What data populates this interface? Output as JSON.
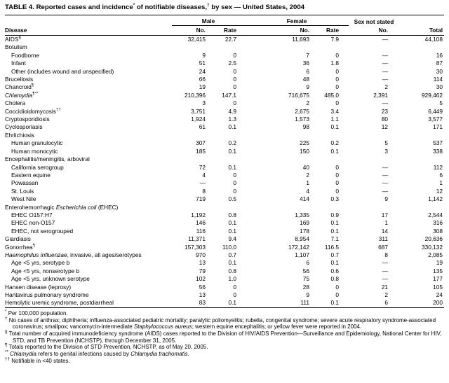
{
  "title_parts": [
    {
      "t": "TABLE 4. Reported cases and incidence"
    },
    {
      "t": "*",
      "sup": true
    },
    {
      "t": " of notifiable diseases,"
    },
    {
      "t": "†",
      "sup": true
    },
    {
      "t": " by sex — United States, 2004"
    }
  ],
  "table": {
    "group_headers": {
      "male": "Male",
      "female": "Female",
      "sex_not_stated": "Sex not stated"
    },
    "column_headers": {
      "disease": "Disease",
      "no": "No.",
      "rate": "Rate",
      "total": "Total"
    },
    "rows": [
      {
        "name": [
          {
            "t": "AIDS"
          },
          {
            "t": "§",
            "sup": true
          }
        ],
        "values": [
          "32,415",
          "22.7",
          "11,693",
          "7.9",
          "—",
          "44,108"
        ]
      },
      {
        "name": "Botulism",
        "group": true
      },
      {
        "name": "Foodborne",
        "indent": 1,
        "values": [
          "9",
          "0",
          "7",
          "0",
          "—",
          "16"
        ]
      },
      {
        "name": "Infant",
        "indent": 1,
        "values": [
          "51",
          "2.5",
          "36",
          "1.8",
          "—",
          "87"
        ]
      },
      {
        "name": "Other (includes wound and unspecified)",
        "indent": 1,
        "values": [
          "24",
          "0",
          "6",
          "0",
          "—",
          "30"
        ]
      },
      {
        "name": "Brucellosis",
        "values": [
          "66",
          "0",
          "48",
          "0",
          "—",
          "114"
        ]
      },
      {
        "name": [
          {
            "t": "Chancroid"
          },
          {
            "t": "¶",
            "sup": true
          }
        ],
        "values": [
          "19",
          "0",
          "9",
          "0",
          "2",
          "30"
        ]
      },
      {
        "name": [
          {
            "t": "Chlamydia",
            "i": true
          },
          {
            "t": "¶**",
            "sup": true
          }
        ],
        "values": [
          "210,396",
          "147.1",
          "716,675",
          "485.0",
          "2,391",
          "929,462"
        ]
      },
      {
        "name": "Cholera",
        "values": [
          "3",
          "0",
          "2",
          "0",
          "—",
          "5"
        ]
      },
      {
        "name": [
          {
            "t": "Coccidioidomycosis"
          },
          {
            "t": "††",
            "sup": true
          }
        ],
        "values": [
          "3,751",
          "4.9",
          "2,675",
          "3.4",
          "23",
          "6,449"
        ]
      },
      {
        "name": "Cryptosporidiosis",
        "values": [
          "1,924",
          "1.3",
          "1,573",
          "1.1",
          "80",
          "3,577"
        ]
      },
      {
        "name": "Cyclosporiasis",
        "values": [
          "61",
          "0.1",
          "98",
          "0.1",
          "12",
          "171"
        ]
      },
      {
        "name": "Ehrlichiosis",
        "group": true
      },
      {
        "name": "Human granulocytic",
        "indent": 1,
        "values": [
          "307",
          "0.2",
          "225",
          "0.2",
          "5",
          "537"
        ]
      },
      {
        "name": "Human monocytic",
        "indent": 1,
        "values": [
          "185",
          "0.1",
          "150",
          "0.1",
          "3",
          "338"
        ]
      },
      {
        "name": "Encephalitis/meningitis, arboviral",
        "group": true
      },
      {
        "name": "California serogroup",
        "indent": 1,
        "values": [
          "72",
          "0.1",
          "40",
          "0",
          "—",
          "112"
        ]
      },
      {
        "name": "Eastern equine",
        "indent": 1,
        "values": [
          "4",
          "0",
          "2",
          "0",
          "—",
          "6"
        ]
      },
      {
        "name": "Powassan",
        "indent": 1,
        "values": [
          "—",
          "0",
          "1",
          "0",
          "—",
          "1"
        ]
      },
      {
        "name": "St. Louis",
        "indent": 1,
        "values": [
          "8",
          "0",
          "4",
          "0",
          "—",
          "12"
        ]
      },
      {
        "name": "West Nile",
        "indent": 1,
        "values": [
          "719",
          "0.5",
          "414",
          "0.3",
          "9",
          "1,142"
        ]
      },
      {
        "name": [
          {
            "t": "Enterohemorrhagic "
          },
          {
            "t": "Escherichia coli",
            "i": true
          },
          {
            "t": " (EHEC)"
          }
        ],
        "group": true
      },
      {
        "name": "EHEC O157:H7",
        "indent": 1,
        "values": [
          "1,192",
          "0.8",
          "1,335",
          "0.9",
          "17",
          "2,544"
        ]
      },
      {
        "name": "EHEC non-O157",
        "indent": 1,
        "values": [
          "146",
          "0.1",
          "169",
          "0.1",
          "1",
          "316"
        ]
      },
      {
        "name": "EHEC, not serogrouped",
        "indent": 1,
        "values": [
          "116",
          "0.1",
          "178",
          "0.1",
          "14",
          "308"
        ]
      },
      {
        "name": "Giardiasis",
        "values": [
          "11,371",
          "9.4",
          "8,954",
          "7.1",
          "311",
          "20,636"
        ]
      },
      {
        "name": [
          {
            "t": "Gonorrhea"
          },
          {
            "t": "¶",
            "sup": true
          }
        ],
        "values": [
          "157,303",
          "110.0",
          "172,142",
          "116.5",
          "687",
          "330,132"
        ]
      },
      {
        "name": [
          {
            "t": "Haemophilus influenzae",
            "i": true
          },
          {
            "t": ", invasive, all ages/serotypes"
          }
        ],
        "values": [
          "970",
          "0.7",
          "1,107",
          "0.7",
          "8",
          "2,085"
        ]
      },
      {
        "name": "Age <5 yrs, serotype b",
        "indent": 1,
        "values": [
          "13",
          "0.1",
          "6",
          "0.1",
          "—",
          "19"
        ]
      },
      {
        "name": "Age <5 yrs, nonserotype b",
        "indent": 1,
        "values": [
          "79",
          "0.8",
          "56",
          "0.6",
          "—",
          "135"
        ]
      },
      {
        "name": "Age <5 yrs, unknown serotype",
        "indent": 1,
        "values": [
          "102",
          "1.0",
          "75",
          "0.8",
          "—",
          "177"
        ]
      },
      {
        "name": "Hansen disease (leprosy)",
        "values": [
          "56",
          "0",
          "28",
          "0",
          "21",
          "105"
        ]
      },
      {
        "name": "Hantavirus pulmonary syndrome",
        "values": [
          "13",
          "0",
          "9",
          "0",
          "2",
          "24"
        ]
      },
      {
        "name": "Hemolytic uremic syndrome, postdiarrheal",
        "values": [
          "83",
          "0.1",
          "111",
          "0.1",
          "6",
          "200"
        ]
      }
    ]
  },
  "footnotes": [
    {
      "marker": "*",
      "parts": "Per 100,000 population."
    },
    {
      "marker": "†",
      "parts": [
        {
          "t": "No cases of anthrax; diphtheria; influenza-associated pediatric mortality; paralytic poliomyelitis; rubella, congenital syndrome; severe acute respiratory syndrome-associated coronavirus; smallpox; vancomycin-intermediate "
        },
        {
          "t": "Staphylococcus aureus",
          "i": true
        },
        {
          "t": "; western equine encephalitis; or yellow fever were reported in 2004."
        }
      ]
    },
    {
      "marker": "§",
      "parts": "Total number of acquired immunodeficiency syndrome (AIDS) cases reported to the Division of HIV/AIDS Prevention—Surveillance and Epidemiology, National Center for HIV, STD, and TB Prevention (NCHSTP), through December 31, 2005."
    },
    {
      "marker": "¶",
      "parts": "Totals reported to the Division of STD Prevention, NCHSTP, as of May 20, 2005."
    },
    {
      "marker": "**",
      "parts": [
        {
          "t": "Chlamydia",
          "i": true
        },
        {
          "t": " refers to genital infections caused by "
        },
        {
          "t": "Chlamydia trachomatis",
          "i": true
        },
        {
          "t": "."
        }
      ]
    },
    {
      "marker": "††",
      "parts": "Notifiable in <40 states."
    }
  ]
}
